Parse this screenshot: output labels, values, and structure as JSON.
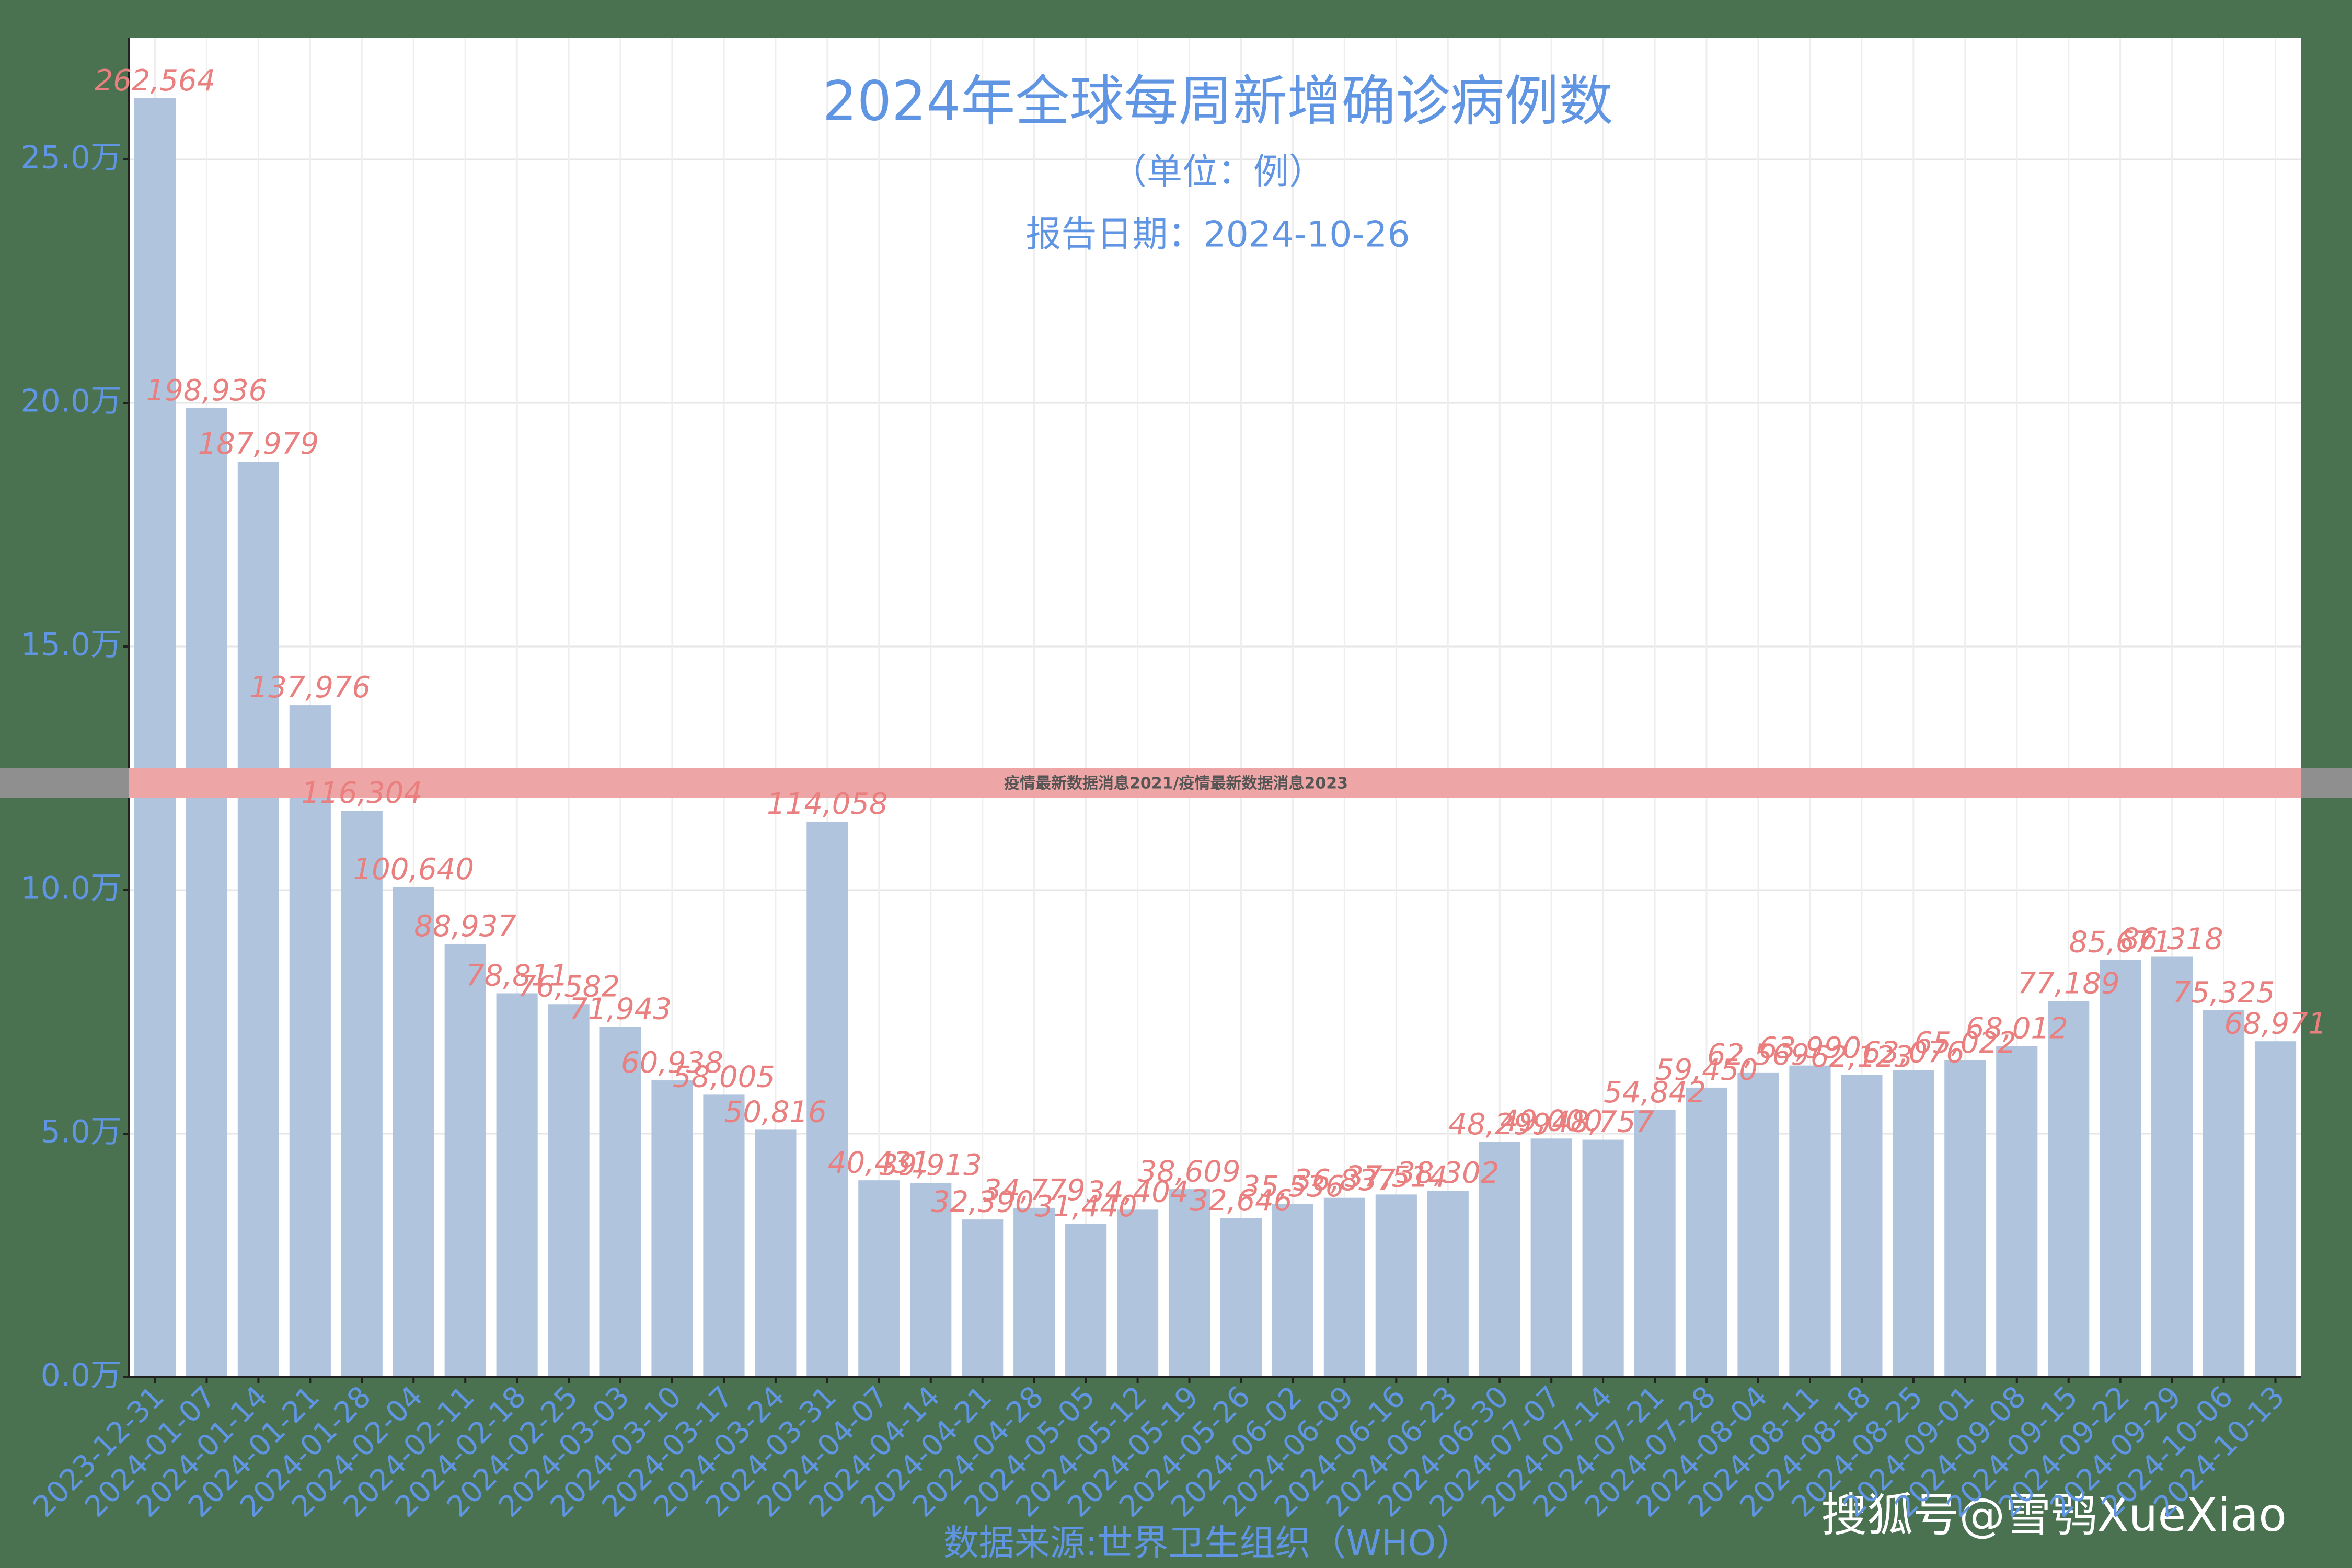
{
  "chart_data": {
    "type": "bar",
    "title": "2024年全球每周新增确诊病例数",
    "subtitle": "（单位：例）",
    "report_date": "报告日期：2024-10-26",
    "x_label": "数据来源:世界卫生组织（WHO）",
    "color": "#b0c4de",
    "label_color": "#e97f7f",
    "grid": true,
    "categories": [
      "2023-12-31",
      "2024-01-07",
      "2024-01-14",
      "2024-01-21",
      "2024-01-28",
      "2024-02-04",
      "2024-02-11",
      "2024-02-18",
      "2024-02-25",
      "2024-03-03",
      "2024-03-10",
      "2024-03-17",
      "2024-03-24",
      "2024-03-31",
      "2024-04-07",
      "2024-04-14",
      "2024-04-21",
      "2024-04-28",
      "2024-05-05",
      "2024-05-12",
      "2024-05-19",
      "2024-05-26",
      "2024-06-02",
      "2024-06-09",
      "2024-06-16",
      "2024-06-23",
      "2024-06-30",
      "2024-07-07",
      "2024-07-14",
      "2024-07-21",
      "2024-07-28",
      "2024-08-04",
      "2024-08-11",
      "2024-08-18",
      "2024-08-25",
      "2024-09-01",
      "2024-09-08",
      "2024-09-15",
      "2024-09-22",
      "2024-09-29",
      "2024-10-06",
      "2024-10-13"
    ],
    "values": [
      262564,
      198936,
      187979,
      137976,
      116304,
      100640,
      88937,
      78811,
      76582,
      71943,
      60938,
      58005,
      50816,
      114058,
      40431,
      39913,
      32390,
      34779,
      31440,
      34404,
      38609,
      32646,
      35536,
      36837,
      37514,
      38302,
      48299,
      49000,
      48757,
      54842,
      59450,
      62569,
      63990,
      62123,
      63076,
      65022,
      68012,
      77189,
      85671,
      86318,
      75325,
      68971
    ],
    "value_labels": [
      "262,564",
      "198,936",
      "187,979",
      "137,976",
      "116,304",
      "100,640",
      "88,937",
      "78,811",
      "76,582",
      "71,943",
      "60,938",
      "58,005",
      "50,816",
      "114,058",
      "40,431",
      "39,913",
      "32,390",
      "34,779",
      "31,440",
      "34,404",
      "38,609",
      "32,646",
      "35,536",
      "36,837",
      "37,514",
      "38,302",
      "48,299",
      "49,000",
      "48,757",
      "54,842",
      "59,450",
      "62,569",
      "63,990",
      "62,123",
      "63,076",
      "65,022",
      "68,012",
      "77,189",
      "85,671",
      "86,318",
      "75,325",
      "68,971"
    ],
    "ylim": [
      0,
      275000
    ],
    "yticks": [
      {
        "value": 0,
        "label": "0.0万"
      },
      {
        "value": 50000,
        "label": "5.0万"
      },
      {
        "value": 100000,
        "label": "10.0万"
      },
      {
        "value": 150000,
        "label": "15.0万"
      },
      {
        "value": 200000,
        "label": "20.0万"
      },
      {
        "value": 250000,
        "label": "25.0万"
      }
    ]
  },
  "banner": "疫情最新数据消息2021/疫情最新数据消息2023",
  "watermark": "搜狐号@雪鸮XueXiao"
}
